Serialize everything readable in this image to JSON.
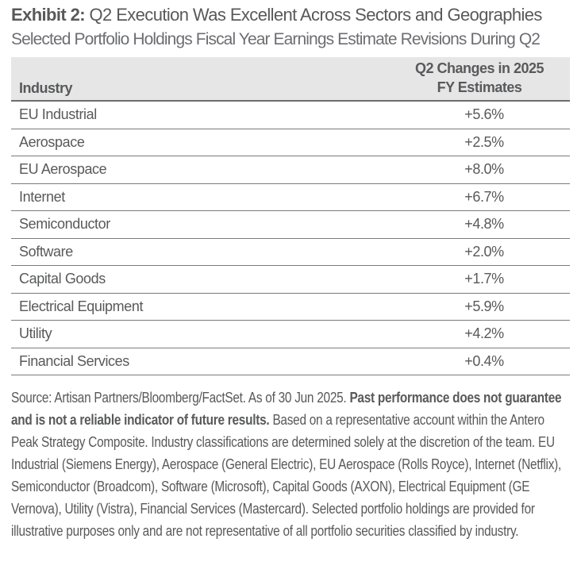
{
  "title": {
    "label": "Exhibit 2:",
    "text": "Q2 Execution Was Excellent Across Sectors and Geographies"
  },
  "subtitle": "Selected Portfolio Holdings Fiscal Year Earnings Estimate Revisions During Q2",
  "table": {
    "headers": [
      "Industry",
      "Q2 Changes in 2025",
      "FY Estimates"
    ],
    "rows": [
      {
        "industry": "EU Industrial",
        "change": "+5.6%"
      },
      {
        "industry": "Aerospace",
        "change": "+2.5%"
      },
      {
        "industry": "EU Aerospace",
        "change": "+8.0%"
      },
      {
        "industry": "Internet",
        "change": "+6.7%"
      },
      {
        "industry": "Semiconductor",
        "change": "+4.8%"
      },
      {
        "industry": "Software",
        "change": "+2.0%"
      },
      {
        "industry": "Capital Goods",
        "change": "+1.7%"
      },
      {
        "industry": "Electrical Equipment",
        "change": "+5.9%"
      },
      {
        "industry": "Utility",
        "change": "+4.2%"
      },
      {
        "industry": "Financial Services",
        "change": "+0.4%"
      }
    ]
  },
  "footnote": {
    "source": "Source: Artisan Partners/Bloomberg/FactSet. As of 30 Jun 2025. ",
    "disclaimer": "Past performance does not guarantee and is not a reliable indicator of future results.",
    "body": " Based on a representative account within the Antero Peak Strategy Composite. Industry classifications are determined solely at the discretion of the team. EU Industrial (Siemens Energy), Aerospace (General Electric), EU Aerospace (Rolls Royce), Internet (Netflix), Semiconductor (Broadcom), Software (Microsoft), Capital Goods (AXON), Electrical Equipment (GE Vernova), Utility (Vistra), Financial Services (Mastercard). Selected portfolio holdings are provided for illustrative purposes only and are not representative of all portfolio securities classified by industry."
  },
  "colors": {
    "text": "#58595b",
    "header_bg": "#e6e6e6",
    "rule": "#6d6e71"
  }
}
